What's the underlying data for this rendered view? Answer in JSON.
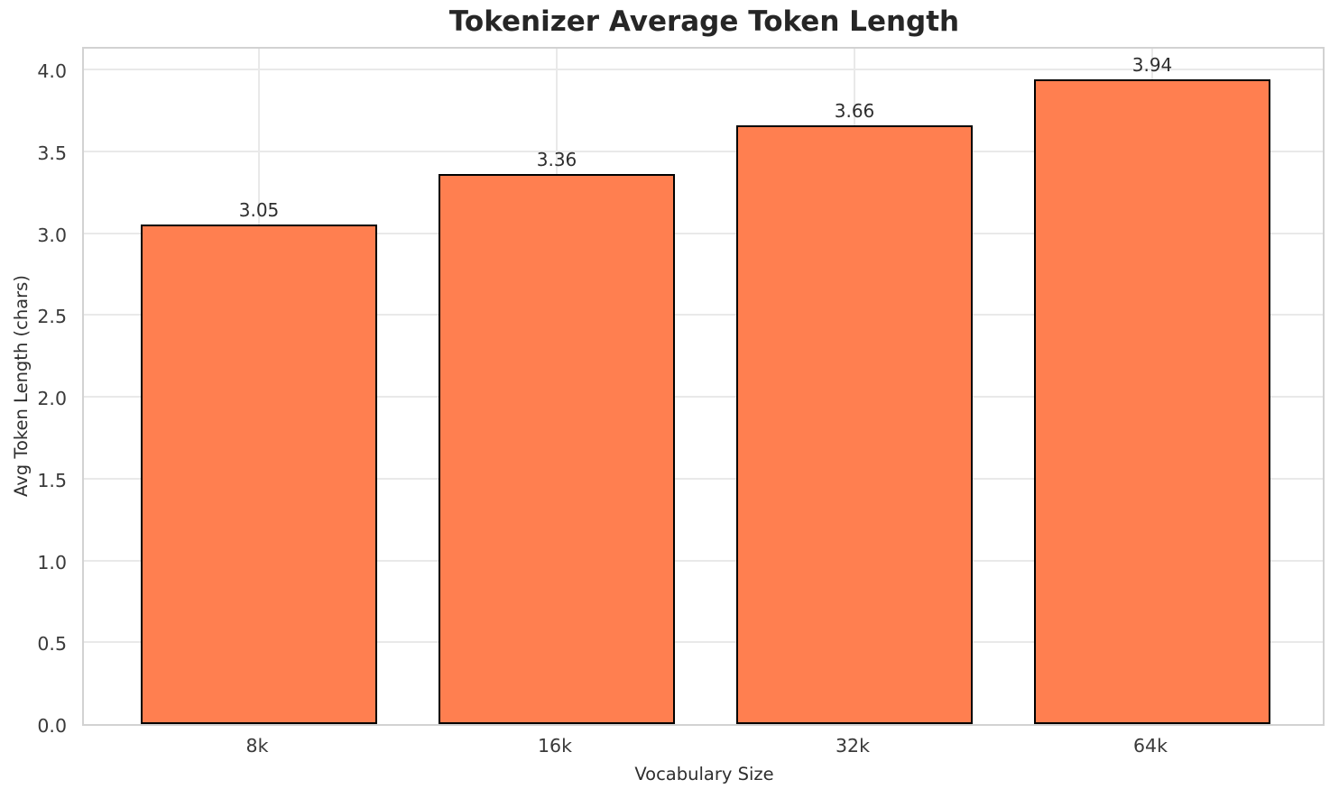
{
  "chart_data": {
    "type": "bar",
    "title": "Tokenizer Average Token Length",
    "xlabel": "Vocabulary Size",
    "ylabel": "Avg Token Length (chars)",
    "categories": [
      "8k",
      "16k",
      "32k",
      "64k"
    ],
    "values": [
      3.05,
      3.36,
      3.66,
      3.94
    ],
    "bar_value_labels": [
      "3.05",
      "3.36",
      "3.66",
      "3.94"
    ],
    "yticks": [
      0.0,
      0.5,
      1.0,
      1.5,
      2.0,
      2.5,
      3.0,
      3.5,
      4.0
    ],
    "ytick_labels": [
      "0.0",
      "0.5",
      "1.0",
      "1.5",
      "2.0",
      "2.5",
      "3.0",
      "3.5",
      "4.0"
    ],
    "ylim": [
      0,
      4.149
    ],
    "grid": true,
    "legend": "none",
    "colors": {
      "bar_fill": "#FF7F50",
      "bar_edge": "#000000",
      "grid": "#e9e9e9",
      "spine": "#d2d2d2",
      "title_text": "#262626",
      "tick_text": "#3a3a3a",
      "label_text": "#2e2e2e",
      "background": "#ffffff"
    }
  }
}
